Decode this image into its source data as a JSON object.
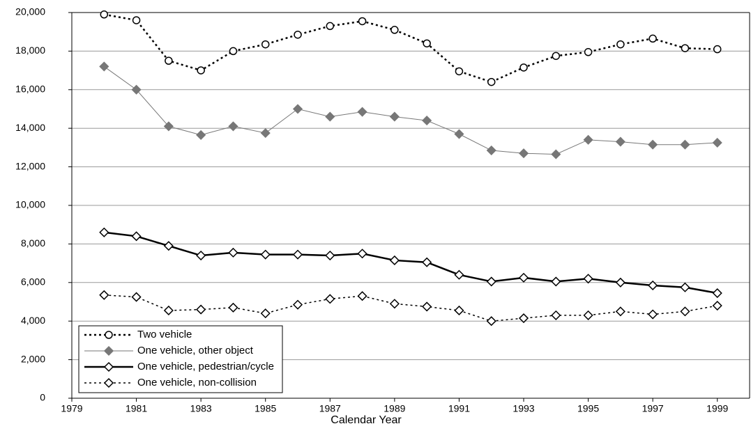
{
  "chart_data": {
    "type": "line",
    "x_label": "Calendar Year",
    "x": [
      1980,
      1981,
      1982,
      1983,
      1984,
      1985,
      1986,
      1987,
      1988,
      1989,
      1990,
      1991,
      1992,
      1993,
      1994,
      1995,
      1996,
      1997,
      1998,
      1999
    ],
    "series": [
      {
        "name": "Two vehicle",
        "color": "#000000",
        "dashed": true,
        "width": 2.5,
        "marker": "circle",
        "marker_fill": "#ffffff",
        "values": [
          19900,
          19600,
          17500,
          17000,
          18000,
          18350,
          18850,
          19300,
          19550,
          19100,
          18400,
          16950,
          16400,
          17150,
          17750,
          17950,
          18350,
          18650,
          18150,
          18100
        ]
      },
      {
        "name": "One vehicle, other object",
        "color": "#777777",
        "dashed": false,
        "width": 1,
        "marker": "diamond",
        "marker_fill": "#777777",
        "values": [
          17200,
          16000,
          14100,
          13650,
          14100,
          13750,
          15000,
          14600,
          14850,
          14600,
          14400,
          13700,
          12850,
          12700,
          12650,
          13400,
          13300,
          13150,
          13150,
          13250
        ]
      },
      {
        "name": "One vehicle, pedestrian/cycle",
        "color": "#000000",
        "dashed": false,
        "width": 2.5,
        "marker": "diamond",
        "marker_fill": "#ffffff",
        "values": [
          8600,
          8400,
          7900,
          7400,
          7550,
          7450,
          7450,
          7400,
          7500,
          7150,
          7050,
          6400,
          6050,
          6250,
          6050,
          6200,
          6000,
          5850,
          5750,
          5450
        ]
      },
      {
        "name": "One vehicle, non-collision",
        "color": "#000000",
        "dashed": true,
        "width": 1.5,
        "marker": "diamond",
        "marker_fill": "#ffffff",
        "values": [
          5350,
          5250,
          4550,
          4600,
          4700,
          4400,
          4850,
          5150,
          5300,
          4900,
          4750,
          4550,
          4000,
          4150,
          4300,
          4300,
          4500,
          4350,
          4500,
          4800
        ]
      }
    ],
    "xlim": [
      1979,
      2000
    ],
    "xticks": [
      1979,
      1981,
      1983,
      1985,
      1987,
      1989,
      1991,
      1993,
      1995,
      1997,
      1999
    ],
    "ylim": [
      0,
      20000
    ],
    "yticks": [
      0,
      {
        "value": 2000,
        "label": "2,000"
      },
      {
        "value": 4000,
        "label": "4,000"
      },
      {
        "value": 6000,
        "label": "6,000"
      },
      {
        "value": 8000,
        "label": "8,000"
      },
      {
        "value": 10000,
        "label": "10,000"
      },
      {
        "value": 12000,
        "label": "12,000"
      },
      {
        "value": 14000,
        "label": "14,000"
      },
      {
        "value": 16000,
        "label": "16,000"
      },
      {
        "value": 18000,
        "label": "18,000"
      },
      {
        "value": 20000,
        "label": "20,000"
      }
    ],
    "grid": true,
    "legend": "lower left"
  }
}
